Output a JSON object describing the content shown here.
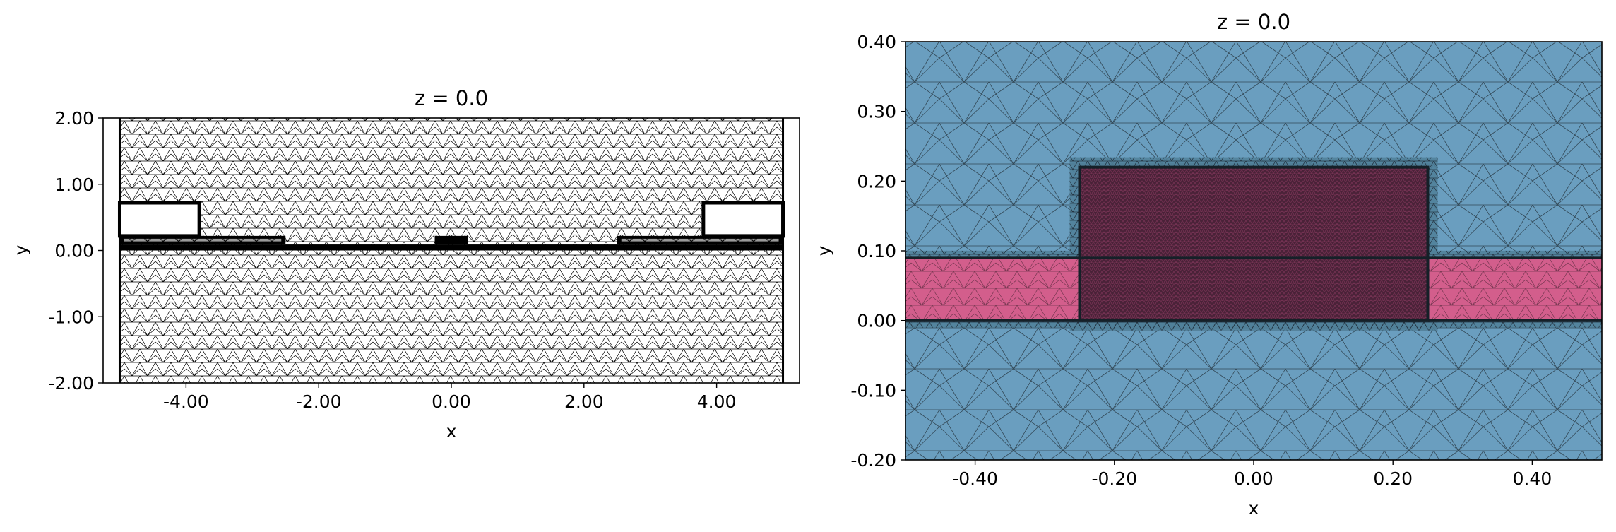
{
  "chart_data": [
    {
      "type": "mesh",
      "title": "z = 0.0",
      "xlabel": "x",
      "ylabel": "y",
      "xlim": [
        -5.25,
        5.25
      ],
      "ylim": [
        -2.0,
        2.0
      ],
      "domain_x": [
        -5.0,
        5.0
      ],
      "xticks": [
        -4.0,
        -2.0,
        0.0,
        2.0,
        4.0
      ],
      "xtick_labels": [
        "-4.00",
        "-2.00",
        "0.00",
        "2.00",
        "4.00"
      ],
      "yticks": [
        -2.0,
        -1.0,
        0.0,
        1.0,
        2.0
      ],
      "ytick_labels": [
        "-2.00",
        "-1.00",
        "0.00",
        "1.00",
        "2.00"
      ],
      "colors": {
        "mesh_line": "#000000",
        "fill": "#ffffff"
      },
      "regions": [
        {
          "name": "left-block",
          "x": [
            -5.0,
            -3.8
          ],
          "y": [
            0.22,
            0.72
          ]
        },
        {
          "name": "right-block",
          "x": [
            3.8,
            5.0
          ],
          "y": [
            0.22,
            0.72
          ]
        },
        {
          "name": "left-step",
          "x": [
            -5.0,
            -2.5
          ],
          "y": [
            0.09,
            0.22
          ]
        },
        {
          "name": "right-step",
          "x": [
            2.5,
            5.0
          ],
          "y": [
            0.09,
            0.22
          ]
        },
        {
          "name": "center-core",
          "x": [
            -0.25,
            0.25
          ],
          "y": [
            0.09,
            0.22
          ]
        },
        {
          "name": "slab",
          "x": [
            -5.0,
            5.0
          ],
          "y": [
            0.0,
            0.09
          ]
        }
      ]
    },
    {
      "type": "mesh",
      "title": "z = 0.0",
      "xlabel": "x",
      "ylabel": "y",
      "xlim": [
        -0.5,
        0.5
      ],
      "ylim": [
        -0.2,
        0.4
      ],
      "xticks": [
        -0.4,
        -0.2,
        0.0,
        0.2,
        0.4
      ],
      "xtick_labels": [
        "-0.40",
        "-0.20",
        "0.00",
        "0.20",
        "0.40"
      ],
      "yticks": [
        -0.2,
        -0.1,
        0.0,
        0.1,
        0.2,
        0.3,
        0.4
      ],
      "ytick_labels": [
        "-0.20",
        "-0.10",
        "0.00",
        "0.10",
        "0.20",
        "0.30",
        "0.40"
      ],
      "colors": {
        "background": "#6a9ebf",
        "slab": "#d35e8c",
        "core": "#4a2238",
        "mesh_line": "#1f2a33"
      },
      "regions": [
        {
          "name": "slab",
          "x": [
            -0.5,
            0.5
          ],
          "y": [
            0.0,
            0.09
          ]
        },
        {
          "name": "core",
          "x": [
            -0.25,
            0.25
          ],
          "y": [
            0.0,
            0.22
          ]
        }
      ]
    }
  ]
}
